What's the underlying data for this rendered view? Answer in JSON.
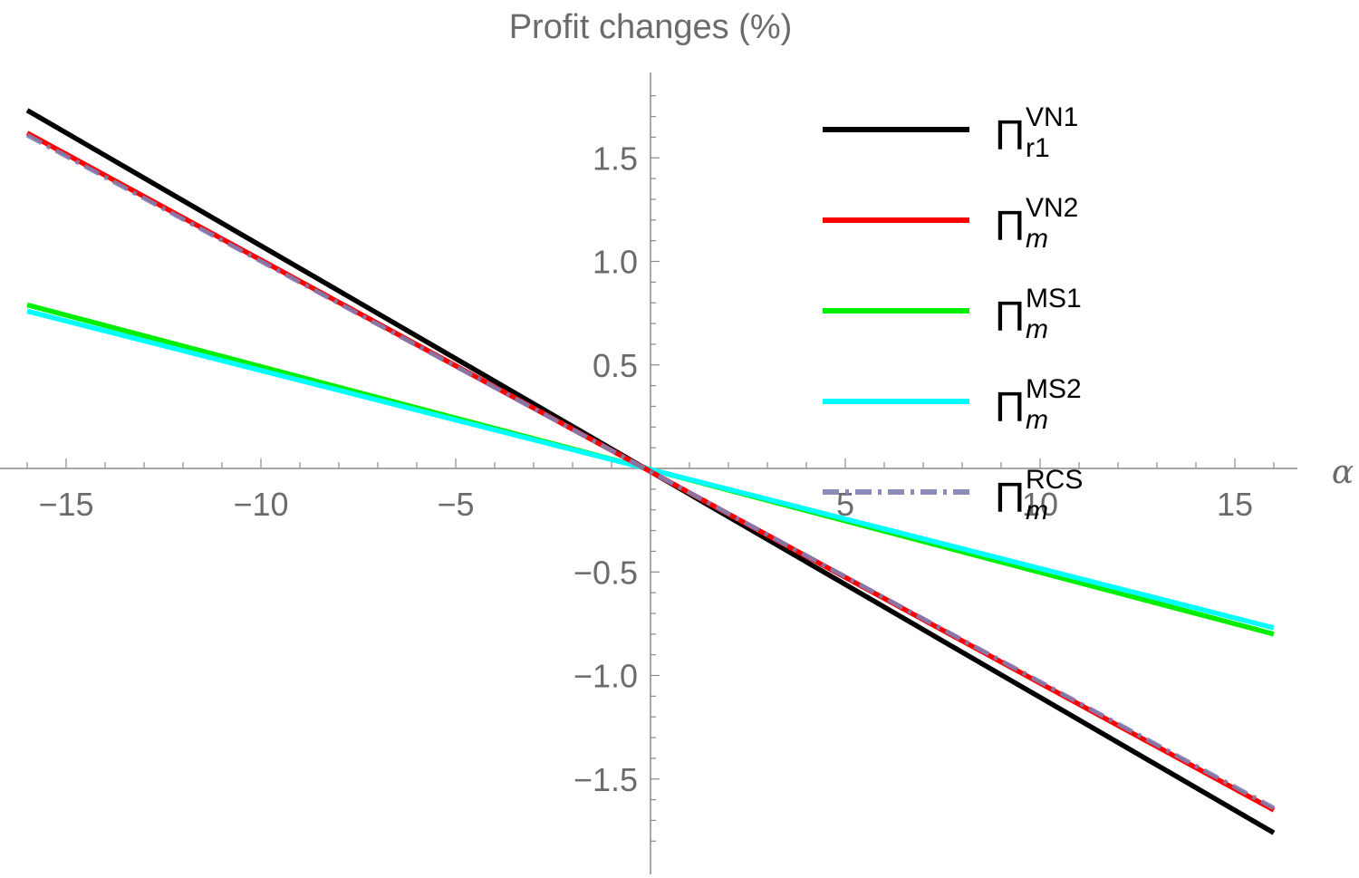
{
  "chart_data": {
    "type": "line",
    "title": "Profit changes (%)",
    "xlabel": "α",
    "ylabel": "",
    "xlim": [
      -16,
      16
    ],
    "ylim": [
      -1.9,
      1.9
    ],
    "x_ticks": [
      -15,
      -10,
      -5,
      5,
      10,
      15
    ],
    "x_tick_labels": [
      "−15",
      "−10",
      "−5",
      "5",
      "10",
      "15"
    ],
    "y_ticks": [
      1.5,
      1.0,
      0.5,
      -0.5,
      -1.0,
      -1.5
    ],
    "y_tick_labels": [
      "1.5",
      "1.0",
      "0.5",
      "−0.5",
      "−1.0",
      "−1.5"
    ],
    "grid": false,
    "legend_position": "top-right",
    "series": [
      {
        "name": "VN1",
        "legend_symbol": "Π",
        "legend_sup": "VN1",
        "legend_sub": "r1",
        "legend_sub_italic": false,
        "color": "#000000",
        "style": "solid",
        "x": [
          -16,
          16
        ],
        "y": [
          1.73,
          -1.76
        ]
      },
      {
        "name": "VN2",
        "legend_symbol": "Π",
        "legend_sup": "VN2",
        "legend_sub": "m",
        "legend_sub_italic": true,
        "color": "#ff0000",
        "style": "solid",
        "x": [
          -16,
          16
        ],
        "y": [
          1.62,
          -1.65
        ]
      },
      {
        "name": "MS1",
        "legend_symbol": "Π",
        "legend_sup": "MS1",
        "legend_sub": "m",
        "legend_sub_italic": true,
        "color": "#00ee00",
        "style": "solid",
        "x": [
          -16,
          16
        ],
        "y": [
          0.79,
          -0.8
        ]
      },
      {
        "name": "MS2",
        "legend_symbol": "Π",
        "legend_sup": "MS2",
        "legend_sub": "m",
        "legend_sub_italic": true,
        "color": "#00ffff",
        "style": "solid",
        "x": [
          -16,
          16
        ],
        "y": [
          0.76,
          -0.77
        ]
      },
      {
        "name": "RCS",
        "legend_symbol": "Π",
        "legend_sup": "RCS",
        "legend_sub": "m",
        "legend_sub_italic": true,
        "color": "#8080b3",
        "style": "dashdot",
        "x": [
          -16,
          16
        ],
        "y": [
          1.61,
          -1.64
        ]
      }
    ]
  }
}
